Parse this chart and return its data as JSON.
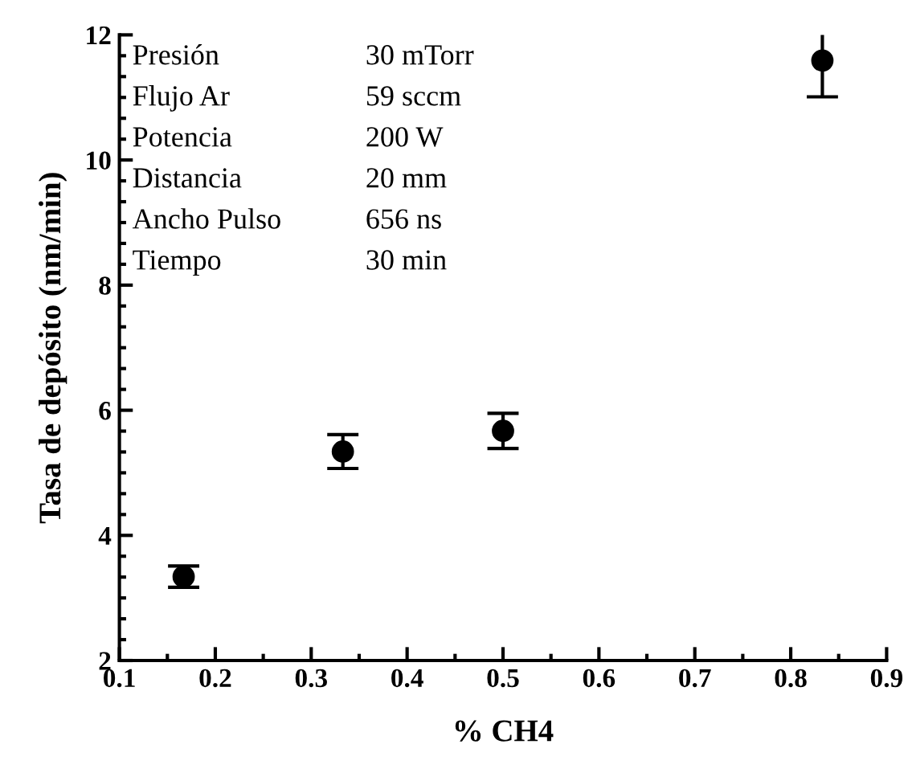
{
  "chart_data": {
    "type": "scatter",
    "xlabel": "% CH4",
    "ylabel": "Tasa de depósito (nm/min)",
    "x": [
      0.167,
      0.333,
      0.5,
      0.833
    ],
    "values": [
      3.34,
      5.34,
      5.67,
      11.59
    ],
    "errors": [
      0.17,
      0.27,
      0.28,
      0.58
    ],
    "color": "#000000",
    "marker": "circle",
    "grid": false,
    "xlim": [
      0.1,
      0.9
    ],
    "xticks": [
      0.1,
      0.2,
      0.3,
      0.4,
      0.5,
      0.6,
      0.7,
      0.8,
      0.9
    ],
    "ylim": [
      2,
      12
    ],
    "yticks": [
      2,
      4,
      6,
      8,
      10,
      12
    ],
    "annotations": [
      "Presión",
      "30 mTorr",
      "Flujo Ar",
      "59 sccm",
      "Potencia",
      "200 W",
      "Distancia",
      "20 mm",
      "Ancho Pulso",
      "656 ns",
      "Tiempo",
      "30 min"
    ]
  }
}
